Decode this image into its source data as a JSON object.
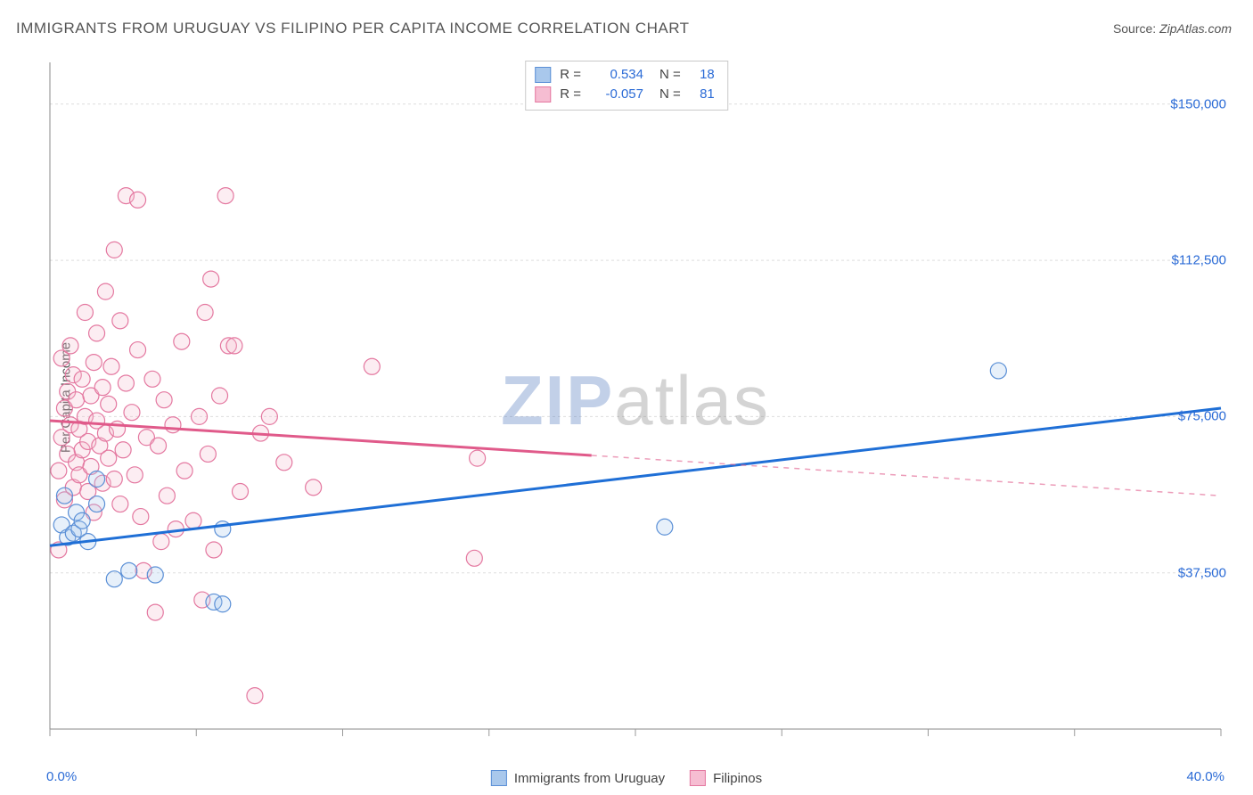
{
  "title": "IMMIGRANTS FROM URUGUAY VS FILIPINO PER CAPITA INCOME CORRELATION CHART",
  "source_label": "Source:",
  "source_value": "ZipAtlas.com",
  "watermark": {
    "part1": "ZIP",
    "part2": "atlas"
  },
  "chart": {
    "type": "scatter",
    "background_color": "#ffffff",
    "grid_color": "#dddddd",
    "axis_color": "#888888",
    "tick_color": "#999999",
    "ylabel": "Per Capita Income",
    "label_fontsize": 15,
    "title_fontsize": 17,
    "xlim": [
      0,
      40
    ],
    "ylim": [
      0,
      160000
    ],
    "xticks": [
      0,
      5,
      10,
      15,
      20,
      25,
      30,
      35,
      40
    ],
    "xtick_labels_shown": {
      "0": "0.0%",
      "40": "40.0%"
    },
    "yticks": [
      37500,
      75000,
      112500,
      150000
    ],
    "ytick_labels": [
      "$37,500",
      "$75,000",
      "$112,500",
      "$150,000"
    ],
    "ytick_color": "#2b6bd6",
    "xtick_label_color": "#2b6bd6",
    "marker_radius": 9,
    "marker_stroke_width": 1.2,
    "fill_opacity": 0.28,
    "line_width": 3,
    "series": [
      {
        "name": "Immigrants from Uruguay",
        "color_stroke": "#5a8fd6",
        "color_fill": "#a9c8ec",
        "line_color": "#1f6fd6",
        "R": "0.534",
        "N": "18",
        "regression": {
          "x1": 0,
          "y1": 44000,
          "x2": 40,
          "y2": 77000,
          "solid_to_x": 40
        },
        "points": [
          [
            0.4,
            49000
          ],
          [
            0.5,
            56000
          ],
          [
            0.6,
            46000
          ],
          [
            0.8,
            47000
          ],
          [
            0.9,
            52000
          ],
          [
            1.0,
            48000
          ],
          [
            1.1,
            50000
          ],
          [
            1.3,
            45000
          ],
          [
            1.6,
            60000
          ],
          [
            1.6,
            54000
          ],
          [
            2.2,
            36000
          ],
          [
            2.7,
            38000
          ],
          [
            3.6,
            37000
          ],
          [
            5.6,
            30500
          ],
          [
            5.9,
            30000
          ],
          [
            5.9,
            48000
          ],
          [
            21.0,
            48500
          ],
          [
            32.4,
            86000
          ]
        ]
      },
      {
        "name": "Filipinos",
        "color_stroke": "#e478a0",
        "color_fill": "#f6bdd2",
        "line_color": "#e05a8a",
        "R": "-0.057",
        "N": "81",
        "regression": {
          "x1": 0,
          "y1": 74000,
          "x2": 40,
          "y2": 56000,
          "solid_to_x": 18.5
        },
        "points": [
          [
            0.3,
            43000
          ],
          [
            0.3,
            62000
          ],
          [
            0.4,
            70000
          ],
          [
            0.4,
            89000
          ],
          [
            0.5,
            55000
          ],
          [
            0.5,
            77000
          ],
          [
            0.6,
            81000
          ],
          [
            0.6,
            66000
          ],
          [
            0.7,
            73000
          ],
          [
            0.7,
            92000
          ],
          [
            0.8,
            58000
          ],
          [
            0.8,
            85000
          ],
          [
            0.9,
            64000
          ],
          [
            0.9,
            79000
          ],
          [
            1.0,
            61000
          ],
          [
            1.0,
            72000
          ],
          [
            1.1,
            84000
          ],
          [
            1.1,
            67000
          ],
          [
            1.2,
            75000
          ],
          [
            1.2,
            100000
          ],
          [
            1.3,
            57000
          ],
          [
            1.3,
            69000
          ],
          [
            1.4,
            80000
          ],
          [
            1.4,
            63000
          ],
          [
            1.5,
            88000
          ],
          [
            1.5,
            52000
          ],
          [
            1.6,
            74000
          ],
          [
            1.6,
            95000
          ],
          [
            1.7,
            68000
          ],
          [
            1.8,
            59000
          ],
          [
            1.8,
            82000
          ],
          [
            1.9,
            71000
          ],
          [
            1.9,
            105000
          ],
          [
            2.0,
            65000
          ],
          [
            2.0,
            78000
          ],
          [
            2.1,
            87000
          ],
          [
            2.2,
            60000
          ],
          [
            2.2,
            115000
          ],
          [
            2.3,
            72000
          ],
          [
            2.4,
            54000
          ],
          [
            2.4,
            98000
          ],
          [
            2.5,
            67000
          ],
          [
            2.6,
            83000
          ],
          [
            2.6,
            128000
          ],
          [
            2.8,
            76000
          ],
          [
            2.9,
            61000
          ],
          [
            3.0,
            91000
          ],
          [
            3.0,
            127000
          ],
          [
            3.1,
            51000
          ],
          [
            3.2,
            38000
          ],
          [
            3.3,
            70000
          ],
          [
            3.5,
            84000
          ],
          [
            3.6,
            28000
          ],
          [
            3.7,
            68000
          ],
          [
            3.8,
            45000
          ],
          [
            3.9,
            79000
          ],
          [
            4.0,
            56000
          ],
          [
            4.2,
            73000
          ],
          [
            4.3,
            48000
          ],
          [
            4.5,
            93000
          ],
          [
            4.6,
            62000
          ],
          [
            4.9,
            50000
          ],
          [
            5.1,
            75000
          ],
          [
            5.2,
            31000
          ],
          [
            5.3,
            100000
          ],
          [
            5.4,
            66000
          ],
          [
            5.5,
            108000
          ],
          [
            5.6,
            43000
          ],
          [
            5.8,
            80000
          ],
          [
            6.0,
            128000
          ],
          [
            6.1,
            92000
          ],
          [
            6.3,
            92000
          ],
          [
            6.5,
            57000
          ],
          [
            7.0,
            8000
          ],
          [
            7.2,
            71000
          ],
          [
            7.5,
            75000
          ],
          [
            8.0,
            64000
          ],
          [
            9.0,
            58000
          ],
          [
            11.0,
            87000
          ],
          [
            14.5,
            41000
          ],
          [
            14.6,
            65000
          ]
        ]
      }
    ],
    "bottom_legend": [
      {
        "label": "Immigrants from Uruguay",
        "fill": "#a9c8ec",
        "stroke": "#5a8fd6"
      },
      {
        "label": "Filipinos",
        "fill": "#f6bdd2",
        "stroke": "#e478a0"
      }
    ]
  }
}
